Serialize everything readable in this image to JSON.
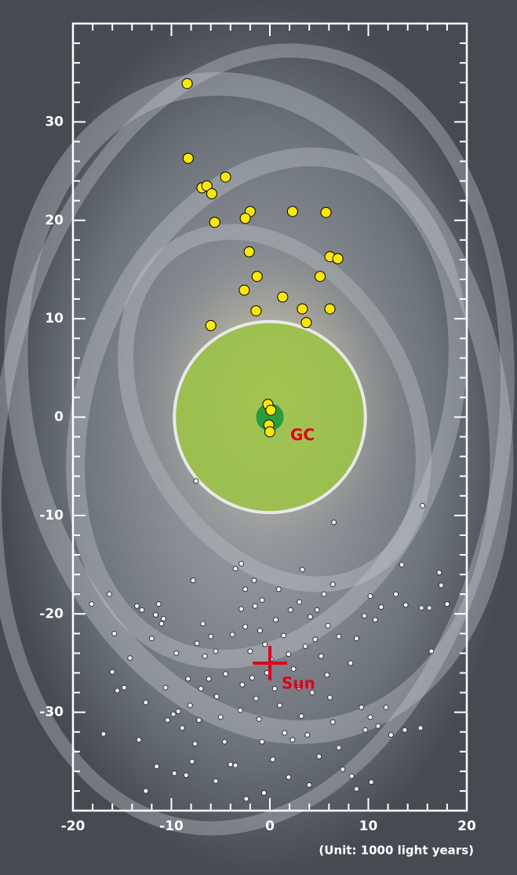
{
  "chart_data": {
    "type": "scatter",
    "xlim": [
      -20,
      20
    ],
    "ylim": [
      -40,
      40
    ],
    "xticks": [
      -20,
      -10,
      0,
      10,
      20
    ],
    "yticks": [
      -30,
      -20,
      -10,
      0,
      10,
      20,
      30
    ],
    "xminorticks": [
      -18,
      -16,
      -14,
      -12,
      -8,
      -6,
      -4,
      -2,
      2,
      4,
      6,
      8,
      12,
      14,
      16,
      18
    ],
    "yminorticks": [
      -38,
      -36,
      -34,
      -32,
      -28,
      -26,
      -24,
      -22,
      -18,
      -16,
      -14,
      -12,
      -8,
      -6,
      -4,
      -2,
      2,
      4,
      6,
      8,
      12,
      14,
      16,
      18,
      22,
      24,
      26,
      28,
      32,
      34,
      36,
      38
    ],
    "unit_note": "(Unit: 1000 light years)",
    "regions": [
      {
        "x": 0,
        "y": 0,
        "radius": 9.7,
        "color": "#9cc14a",
        "edge": "#e8e8e8"
      },
      {
        "x": 0,
        "y": 0,
        "radius": 1.4,
        "color": "#1e9a3c",
        "label": "GC",
        "label_color": "#e0001c"
      }
    ],
    "markers": [
      {
        "x": 0,
        "y": -25,
        "label": "Sun",
        "color": "#e0001c"
      }
    ],
    "series": [
      {
        "color": "#ffe800",
        "edge": "#000000",
        "size": 6.5,
        "x": [
          -8.4,
          -8.3,
          -4.5,
          -6.9,
          -6.4,
          -5.9,
          -5.6,
          -2.0,
          -2.5,
          2.3,
          5.7,
          6.1,
          6.9,
          -2.1,
          -1.3,
          5.1,
          -2.6,
          1.3,
          -1.4,
          3.3,
          6.1,
          3.7,
          -6.0,
          -0.2,
          0.1,
          -0.1,
          0
        ],
        "values": [
          33.9,
          26.3,
          24.4,
          23.3,
          23.5,
          22.7,
          19.8,
          20.9,
          20.2,
          20.9,
          20.8,
          16.3,
          16.1,
          16.8,
          14.3,
          14.3,
          12.9,
          12.2,
          10.8,
          11.0,
          11.0,
          9.6,
          9.3,
          1.3,
          0.7,
          -0.8,
          -1.5
        ]
      },
      {
        "color": "#ffffff",
        "edge": "#333333",
        "size": 3,
        "x": [
          -18.1,
          -16.3,
          -15.8,
          -16.0,
          -15.5,
          -14.8,
          -16.9,
          -14.2,
          -13.5,
          -13.0,
          -13.3,
          -12.6,
          -12.6,
          -12.0,
          -11.6,
          -11.3,
          -11.0,
          -10.8,
          -11.5,
          -10.6,
          -10.4,
          -9.8,
          -9.3,
          -8.9,
          -8.1,
          -7.6,
          -7.2,
          -9.7,
          -8.5,
          -7.9,
          -7.4,
          -7.8,
          -6.6,
          -6.2,
          -6.0,
          -5.5,
          -5.4,
          -5.0,
          -4.6,
          -4.0,
          -3.5,
          -3.5,
          -2.9,
          -2.5,
          -2.9,
          -2.5,
          -2.0,
          -1.8,
          -1.4,
          -1.1,
          -0.8,
          -0.6,
          -1.6,
          -1.5,
          -1.0,
          -0.5,
          0.1,
          -0.3,
          0.5,
          1.0,
          1.5,
          0.3,
          1.9,
          -2.4,
          0.6,
          1.4,
          1.9,
          2.4,
          2.9,
          3.2,
          3.8,
          2.3,
          4.0,
          3.0,
          3.3,
          4.1,
          4.6,
          5.2,
          5.8,
          6.1,
          6.4,
          7.0,
          7.4,
          8.3,
          8.8,
          5.5,
          6.4,
          7.0,
          8.2,
          8.8,
          9.6,
          10.2,
          9.3,
          9.7,
          10.2,
          11.0,
          11.8,
          12.3,
          10.7,
          11.3,
          12.8,
          13.4,
          13.8,
          13.7,
          15.3,
          15.4,
          16.2,
          16.4,
          17.2,
          17.4,
          18.0,
          4.8,
          5.9,
          3.6,
          2.1,
          0.9,
          -0.8,
          -3.8,
          -4.5,
          -2.8,
          -3.0,
          -6.8,
          -9.5,
          -8.3,
          -7.0,
          4.3,
          5.0,
          -5.5,
          10.3,
          -7.5,
          6.5,
          15.5
        ],
        "values": [
          -19.0,
          -18.0,
          -22.0,
          -25.9,
          -27.8,
          -27.5,
          -32.2,
          -24.5,
          -19.2,
          -19.6,
          -32.8,
          -29.0,
          -38.0,
          -22.5,
          -20.1,
          -19.0,
          -21.0,
          -20.5,
          -35.5,
          -27.5,
          -30.8,
          -30.2,
          -29.9,
          -31.6,
          -29.3,
          -33.2,
          -30.8,
          -36.2,
          -36.4,
          -35.0,
          -23.0,
          -16.6,
          -24.3,
          -26.6,
          -22.3,
          -23.8,
          -28.4,
          -30.5,
          -33.0,
          -35.3,
          -35.4,
          -15.4,
          -14.9,
          -17.5,
          -19.5,
          -21.3,
          -23.8,
          -26.5,
          -28.6,
          -30.7,
          -33.0,
          -38.2,
          -16.6,
          -19.2,
          -21.7,
          -23.1,
          -24.6,
          -26.0,
          -27.6,
          -29.3,
          -32.1,
          -34.8,
          -36.6,
          -38.8,
          -20.6,
          -22.2,
          -24.1,
          -25.6,
          -27.5,
          -30.4,
          -32.3,
          -32.8,
          -37.4,
          -18.8,
          -15.5,
          -20.3,
          -22.6,
          -24.3,
          -26.2,
          -28.5,
          -31.0,
          -33.6,
          -35.8,
          -36.5,
          -37.8,
          -18.0,
          -17.0,
          -22.3,
          -25.0,
          -22.5,
          -20.2,
          -18.2,
          -29.5,
          -31.8,
          -30.5,
          -31.4,
          -29.5,
          -32.3,
          -20.6,
          -19.3,
          -18.0,
          -15.0,
          -19.1,
          -31.8,
          -31.6,
          -19.4,
          -19.4,
          -23.8,
          -15.8,
          -17.1,
          -19.0,
          -19.6,
          -21.2,
          -23.3,
          -19.6,
          -17.5,
          -18.6,
          -22.1,
          -26.1,
          -27.2,
          -29.8,
          -21.0,
          -24.0,
          -26.6,
          -27.6,
          -28.0,
          -34.5,
          -37.0,
          -37.1,
          -6.5,
          -10.7,
          -9.0
        ]
      }
    ]
  }
}
